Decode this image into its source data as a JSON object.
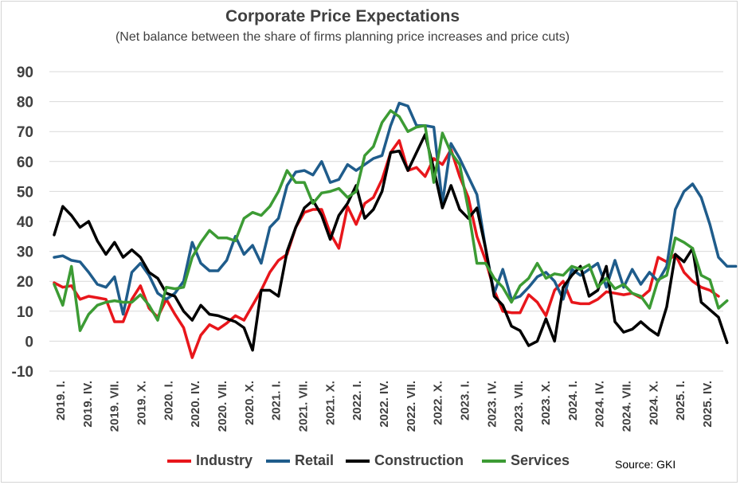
{
  "chart_data": {
    "type": "line",
    "title": "Corporate Price Expectations",
    "subtitle": "(Net balance between the share of firms planning price increases and price cuts)",
    "source": "Source: GKI",
    "ylim": [
      -10,
      90
    ],
    "yticks": [
      -10,
      0,
      10,
      20,
      30,
      40,
      50,
      60,
      70,
      80,
      90
    ],
    "xtick_labels": [
      "2019. I.",
      "2019. IV.",
      "2019. VII.",
      "2019. X.",
      "2020. I.",
      "2020. IV.",
      "2020. VII.",
      "2020. X.",
      "2021. I.",
      "2021. VII.",
      "2021. X.",
      "2022. I.",
      "2022. IV.",
      "2022. VII.",
      "2022. X.",
      "2023. I.",
      "2023. IV.",
      "2023. VII.",
      "2023. X.",
      "2024. I.",
      "2024. IV.",
      "2024. VII.",
      "2024. X.",
      "2025. I.",
      "2025. IV."
    ],
    "legend_position": "bottom",
    "series": [
      {
        "name": "Industry",
        "color": "#e8161b",
        "values": [
          19.5,
          18,
          18.5,
          14,
          15,
          14.5,
          14,
          6.5,
          6.5,
          14,
          18.5,
          11,
          8,
          14,
          9,
          4.5,
          -5.5,
          2,
          5.5,
          4,
          6,
          8.5,
          7,
          12,
          17,
          23,
          27,
          29,
          38,
          43,
          44,
          44,
          36,
          31,
          45,
          39,
          46,
          48,
          54,
          63,
          67,
          57,
          58,
          55,
          61,
          59,
          64,
          55,
          48,
          35,
          27,
          17,
          10,
          9.5,
          9.5,
          15.5,
          13,
          8.5,
          17,
          20,
          13,
          12.5,
          12.5,
          14,
          16.5,
          16,
          15.5,
          16,
          14.5,
          17,
          28,
          26.5,
          29,
          23,
          20,
          18,
          17,
          15
        ]
      },
      {
        "name": "Retail",
        "color": "#1f5c8b",
        "values": [
          28,
          28.5,
          27,
          26.5,
          23,
          19,
          18,
          21.5,
          9,
          23,
          26,
          22,
          16,
          14,
          16,
          20,
          33,
          26,
          23.5,
          23.5,
          27,
          35,
          29,
          32,
          26,
          38,
          41,
          52,
          56.5,
          57,
          55.5,
          60,
          53,
          54,
          59,
          57,
          59,
          61,
          62,
          72,
          79.5,
          78.5,
          72,
          72,
          71.5,
          46,
          66,
          61,
          55,
          49,
          31,
          16,
          24,
          14,
          15,
          18,
          21.5,
          23,
          20,
          14,
          24,
          22,
          24,
          26,
          18,
          27,
          18,
          24,
          19,
          23,
          20,
          25,
          44,
          50,
          52.5,
          48,
          39,
          28,
          25,
          25
        ]
      },
      {
        "name": "Construction",
        "color": "#000000",
        "values": [
          35.5,
          45,
          42,
          38,
          40,
          33.5,
          29,
          33,
          28,
          30.5,
          28,
          23,
          21,
          16,
          15,
          10,
          7,
          12,
          9,
          8.5,
          7.5,
          6.5,
          4.5,
          -3,
          17,
          17,
          15,
          30,
          38,
          44.5,
          47,
          42,
          34,
          42,
          46,
          52,
          41,
          44,
          50,
          63,
          63.5,
          57,
          63,
          69,
          57.5,
          44.5,
          52,
          44,
          41,
          44.5,
          31,
          15,
          12,
          5,
          3.5,
          -1.5,
          0,
          7.5,
          0,
          18,
          22,
          25,
          15,
          17,
          25,
          6.5,
          3,
          4,
          6.5,
          4,
          2,
          11.5,
          29,
          26.5,
          31,
          13,
          10.5,
          8,
          -0.5
        ]
      },
      {
        "name": "Services",
        "color": "#3c9b34",
        "values": [
          19,
          12,
          25,
          3.5,
          9,
          12,
          13,
          13.5,
          13,
          13,
          15.5,
          12,
          7,
          18,
          17.5,
          18,
          28,
          33,
          37,
          34.5,
          34.5,
          33.5,
          41,
          43,
          42,
          45,
          50,
          57,
          53,
          53,
          46,
          49.5,
          50,
          51,
          48,
          50,
          62,
          65,
          73,
          77,
          75,
          70,
          71.5,
          72,
          53,
          69.5,
          63,
          59,
          44,
          26,
          26,
          21,
          18,
          13,
          18.5,
          21,
          26,
          21,
          22.5,
          22,
          25,
          24,
          25.5,
          18,
          21,
          17.5,
          19,
          16,
          15,
          11,
          20.5,
          22,
          34.5,
          33,
          31,
          22,
          20.5,
          11,
          13.5
        ]
      }
    ]
  }
}
